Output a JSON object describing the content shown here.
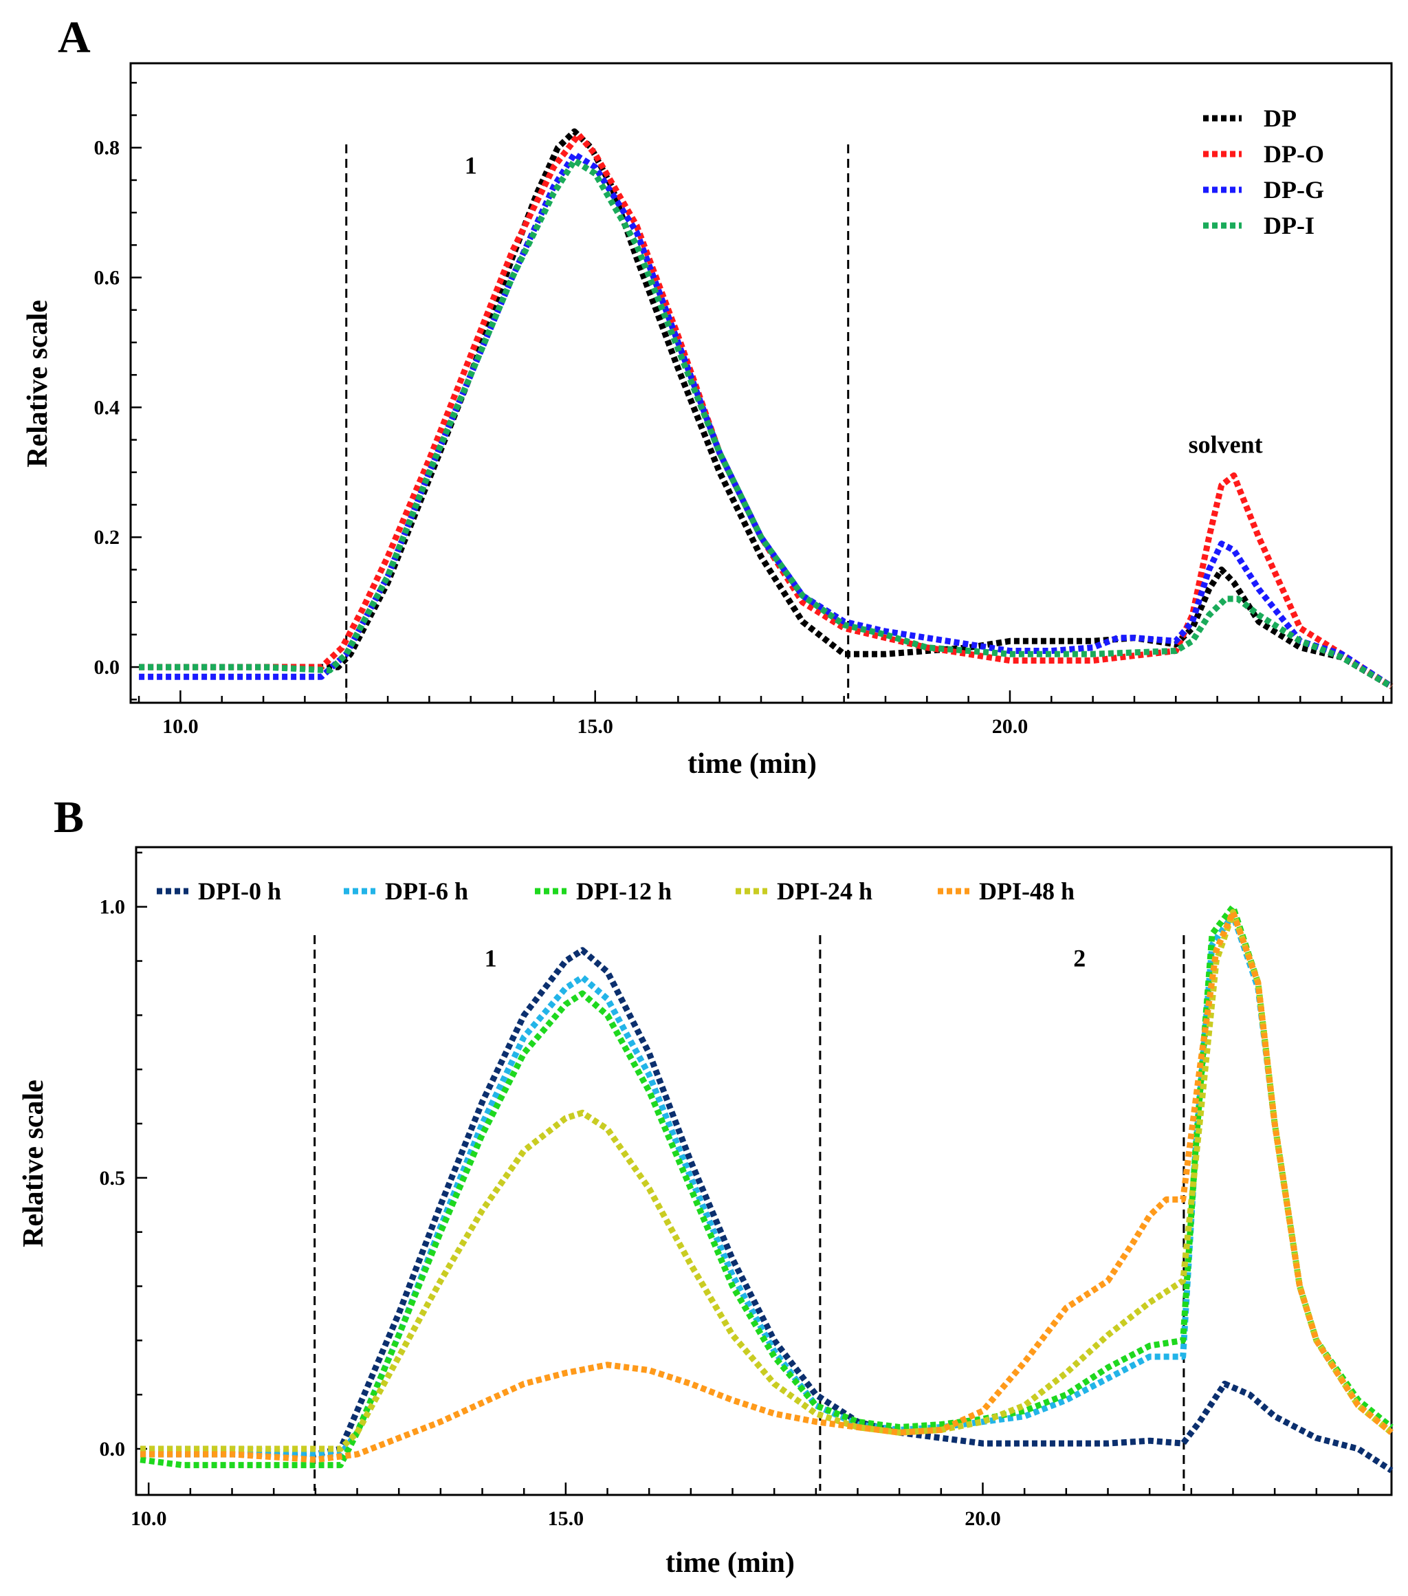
{
  "chart_data": [
    {
      "panel": "A",
      "type": "line",
      "title": "",
      "xlabel": "time (min)",
      "ylabel": "Relative scale",
      "xlim": [
        9.4,
        24.6
      ],
      "ylim": [
        -0.055,
        0.93
      ],
      "xticks": [
        10.0,
        15.0,
        20.0
      ],
      "xtick_labels": [
        "10.0",
        "15.0",
        "20.0"
      ],
      "yticks": [
        0.0,
        0.2,
        0.4,
        0.6,
        0.8
      ],
      "ytick_labels": [
        "0.0",
        "0.2",
        "0.4",
        "0.6",
        "0.8"
      ],
      "legend_position": "top-right",
      "vlines": [
        12.0,
        18.05
      ],
      "annotations": [
        {
          "text": "1",
          "x": 13.5,
          "y": 0.76
        },
        {
          "text": "solvent",
          "x": 22.6,
          "y": 0.33
        }
      ],
      "series": [
        {
          "name": "DP",
          "color": "#000000",
          "x": [
            9.5,
            11.0,
            11.9,
            12.05,
            12.5,
            13.0,
            13.5,
            14.0,
            14.3,
            14.55,
            14.75,
            14.95,
            15.2,
            15.5,
            16.0,
            16.5,
            17.0,
            17.5,
            18.0,
            18.5,
            19.0,
            19.5,
            20.0,
            20.5,
            21.0,
            21.5,
            22.0,
            22.2,
            22.4,
            22.55,
            22.7,
            23.0,
            23.5,
            24.0,
            24.6
          ],
          "y": [
            0.0,
            0.0,
            0.0,
            0.02,
            0.13,
            0.29,
            0.45,
            0.63,
            0.73,
            0.8,
            0.825,
            0.8,
            0.74,
            0.63,
            0.46,
            0.3,
            0.17,
            0.07,
            0.02,
            0.02,
            0.025,
            0.03,
            0.04,
            0.04,
            0.04,
            0.045,
            0.035,
            0.06,
            0.12,
            0.15,
            0.13,
            0.07,
            0.03,
            0.015,
            -0.03
          ]
        },
        {
          "name": "DP-O",
          "color": "#ff1a1a",
          "x": [
            9.5,
            11.0,
            11.7,
            11.95,
            12.2,
            12.5,
            13.0,
            13.5,
            14.0,
            14.5,
            14.8,
            15.0,
            15.5,
            16.0,
            16.5,
            17.0,
            17.5,
            18.0,
            19.0,
            20.0,
            21.0,
            22.0,
            22.2,
            22.4,
            22.55,
            22.7,
            23.0,
            23.5,
            24.0,
            24.6
          ],
          "y": [
            0.0,
            0.0,
            0.0,
            0.03,
            0.09,
            0.17,
            0.32,
            0.48,
            0.64,
            0.77,
            0.82,
            0.79,
            0.68,
            0.51,
            0.33,
            0.2,
            0.1,
            0.06,
            0.03,
            0.01,
            0.01,
            0.025,
            0.08,
            0.2,
            0.28,
            0.295,
            0.2,
            0.06,
            0.02,
            -0.03
          ]
        },
        {
          "name": "DP-G",
          "color": "#1a1aff",
          "x": [
            9.5,
            11.0,
            11.7,
            12.0,
            12.5,
            13.0,
            13.5,
            14.0,
            14.5,
            14.75,
            15.0,
            15.5,
            16.0,
            16.5,
            17.0,
            17.5,
            18.0,
            18.5,
            19.0,
            19.5,
            20.0,
            20.5,
            21.0,
            21.3,
            21.5,
            22.0,
            22.2,
            22.4,
            22.55,
            22.7,
            23.0,
            23.5,
            24.0,
            24.6
          ],
          "y": [
            -0.015,
            -0.015,
            -0.015,
            0.02,
            0.14,
            0.3,
            0.45,
            0.6,
            0.74,
            0.79,
            0.77,
            0.67,
            0.5,
            0.33,
            0.2,
            0.11,
            0.07,
            0.055,
            0.045,
            0.035,
            0.025,
            0.025,
            0.03,
            0.045,
            0.045,
            0.04,
            0.07,
            0.15,
            0.19,
            0.18,
            0.12,
            0.04,
            0.02,
            -0.03
          ]
        },
        {
          "name": "DP-I",
          "color": "#1aab5a",
          "x": [
            9.5,
            11.0,
            11.8,
            12.0,
            12.5,
            13.0,
            13.5,
            14.0,
            14.5,
            14.75,
            15.0,
            15.5,
            16.0,
            16.5,
            17.0,
            17.5,
            18.0,
            18.5,
            19.0,
            20.0,
            21.0,
            22.0,
            22.2,
            22.4,
            22.6,
            22.75,
            23.0,
            23.5,
            24.0,
            24.6
          ],
          "y": [
            0.0,
            0.0,
            -0.005,
            0.02,
            0.14,
            0.3,
            0.45,
            0.6,
            0.73,
            0.78,
            0.76,
            0.65,
            0.49,
            0.33,
            0.2,
            0.11,
            0.065,
            0.05,
            0.03,
            0.02,
            0.02,
            0.025,
            0.04,
            0.08,
            0.105,
            0.105,
            0.08,
            0.04,
            0.015,
            -0.03
          ]
        }
      ]
    },
    {
      "panel": "B",
      "type": "line",
      "title": "",
      "xlabel": "time (min)",
      "ylabel": "Relative scale",
      "xlim": [
        9.85,
        24.9
      ],
      "ylim": [
        -0.085,
        1.11
      ],
      "xticks": [
        10.0,
        15.0,
        20.0
      ],
      "xtick_labels": [
        "10.0",
        "15.0",
        "20.0"
      ],
      "yticks": [
        0.0,
        0.5,
        1.0
      ],
      "ytick_labels": [
        "0.0",
        "0.5",
        "1.0"
      ],
      "legend_position": "top-left",
      "vlines": [
        11.99,
        18.05,
        22.41
      ],
      "annotations": [
        {
          "text": "1",
          "x": 14.1,
          "y": 0.89
        },
        {
          "text": "2",
          "x": 21.16,
          "y": 0.89
        }
      ],
      "series": [
        {
          "name": "DPI-0 h",
          "color": "#0b2f6e",
          "x": [
            9.9,
            11.0,
            12.0,
            12.3,
            12.5,
            13.0,
            13.5,
            14.0,
            14.5,
            15.0,
            15.2,
            15.5,
            16.0,
            16.5,
            17.0,
            17.5,
            18.0,
            18.5,
            19.0,
            19.5,
            20.0,
            20.5,
            21.0,
            21.5,
            22.0,
            22.4,
            22.6,
            22.9,
            23.2,
            23.5,
            24.0,
            24.5,
            24.9
          ],
          "y": [
            -0.01,
            -0.01,
            -0.01,
            0.0,
            0.07,
            0.25,
            0.45,
            0.64,
            0.8,
            0.9,
            0.92,
            0.88,
            0.73,
            0.53,
            0.35,
            0.2,
            0.1,
            0.05,
            0.03,
            0.02,
            0.01,
            0.01,
            0.01,
            0.01,
            0.015,
            0.01,
            0.05,
            0.12,
            0.1,
            0.06,
            0.02,
            0.0,
            -0.04
          ]
        },
        {
          "name": "DPI-6 h",
          "color": "#22b4e8",
          "x": [
            9.9,
            11.0,
            12.0,
            12.3,
            12.5,
            13.0,
            13.5,
            14.0,
            14.5,
            15.0,
            15.2,
            15.5,
            16.0,
            16.5,
            17.0,
            17.5,
            18.0,
            18.5,
            19.0,
            19.5,
            20.0,
            20.5,
            21.0,
            21.5,
            22.0,
            22.4,
            22.55,
            22.75,
            23.0,
            23.3,
            23.5,
            23.8,
            24.0,
            24.5,
            24.9
          ],
          "y": [
            0.0,
            0.0,
            -0.01,
            -0.01,
            0.03,
            0.21,
            0.41,
            0.6,
            0.76,
            0.85,
            0.87,
            0.83,
            0.69,
            0.5,
            0.32,
            0.18,
            0.08,
            0.045,
            0.035,
            0.04,
            0.05,
            0.06,
            0.09,
            0.13,
            0.17,
            0.17,
            0.55,
            0.93,
            0.985,
            0.85,
            0.6,
            0.3,
            0.2,
            0.08,
            0.04
          ]
        },
        {
          "name": "DPI-12 h",
          "color": "#1ed81e",
          "x": [
            9.9,
            10.4,
            11.0,
            12.0,
            12.3,
            12.5,
            13.0,
            13.5,
            14.0,
            14.5,
            15.0,
            15.2,
            15.5,
            16.0,
            16.5,
            17.0,
            17.5,
            18.0,
            18.5,
            19.0,
            19.5,
            20.0,
            20.5,
            21.0,
            21.5,
            22.0,
            22.4,
            22.55,
            22.75,
            23.0,
            23.3,
            23.5,
            23.8,
            24.0,
            24.5,
            24.9
          ],
          "y": [
            -0.02,
            -0.03,
            -0.03,
            -0.03,
            -0.03,
            0.03,
            0.21,
            0.4,
            0.58,
            0.73,
            0.82,
            0.84,
            0.8,
            0.66,
            0.48,
            0.3,
            0.17,
            0.08,
            0.05,
            0.04,
            0.045,
            0.055,
            0.07,
            0.1,
            0.15,
            0.19,
            0.2,
            0.55,
            0.95,
            1.0,
            0.86,
            0.6,
            0.3,
            0.2,
            0.09,
            0.04
          ]
        },
        {
          "name": "DPI-24 h",
          "color": "#c9cc22",
          "x": [
            9.9,
            11.0,
            12.0,
            12.3,
            12.5,
            13.0,
            13.5,
            14.0,
            14.5,
            15.0,
            15.2,
            15.5,
            16.0,
            16.5,
            17.0,
            17.5,
            18.0,
            18.5,
            19.0,
            19.5,
            20.0,
            20.5,
            21.0,
            21.5,
            22.0,
            22.4,
            22.6,
            22.8,
            23.0,
            23.3,
            23.5,
            23.8,
            24.0,
            24.5,
            24.9
          ],
          "y": [
            0.0,
            0.0,
            0.0,
            0.0,
            0.03,
            0.17,
            0.31,
            0.44,
            0.55,
            0.61,
            0.62,
            0.59,
            0.48,
            0.34,
            0.21,
            0.12,
            0.065,
            0.04,
            0.03,
            0.035,
            0.05,
            0.08,
            0.14,
            0.21,
            0.27,
            0.31,
            0.6,
            0.9,
            0.99,
            0.86,
            0.6,
            0.3,
            0.2,
            0.08,
            0.03
          ]
        },
        {
          "name": "DPI-48 h",
          "color": "#ff9a1a",
          "x": [
            9.9,
            11.0,
            12.0,
            12.5,
            13.0,
            13.5,
            14.0,
            14.5,
            15.0,
            15.5,
            16.0,
            16.5,
            17.0,
            17.5,
            18.0,
            18.5,
            19.0,
            19.5,
            20.0,
            20.5,
            21.0,
            21.5,
            21.8,
            22.0,
            22.2,
            22.4,
            22.6,
            22.8,
            23.0,
            23.3,
            23.5,
            23.8,
            24.0,
            24.5,
            24.9
          ],
          "y": [
            -0.01,
            -0.01,
            -0.02,
            -0.01,
            0.02,
            0.05,
            0.085,
            0.12,
            0.14,
            0.155,
            0.145,
            0.12,
            0.09,
            0.065,
            0.05,
            0.04,
            0.03,
            0.035,
            0.07,
            0.16,
            0.26,
            0.31,
            0.38,
            0.43,
            0.46,
            0.46,
            0.7,
            0.92,
            0.99,
            0.86,
            0.6,
            0.3,
            0.2,
            0.08,
            0.03
          ]
        }
      ]
    }
  ]
}
